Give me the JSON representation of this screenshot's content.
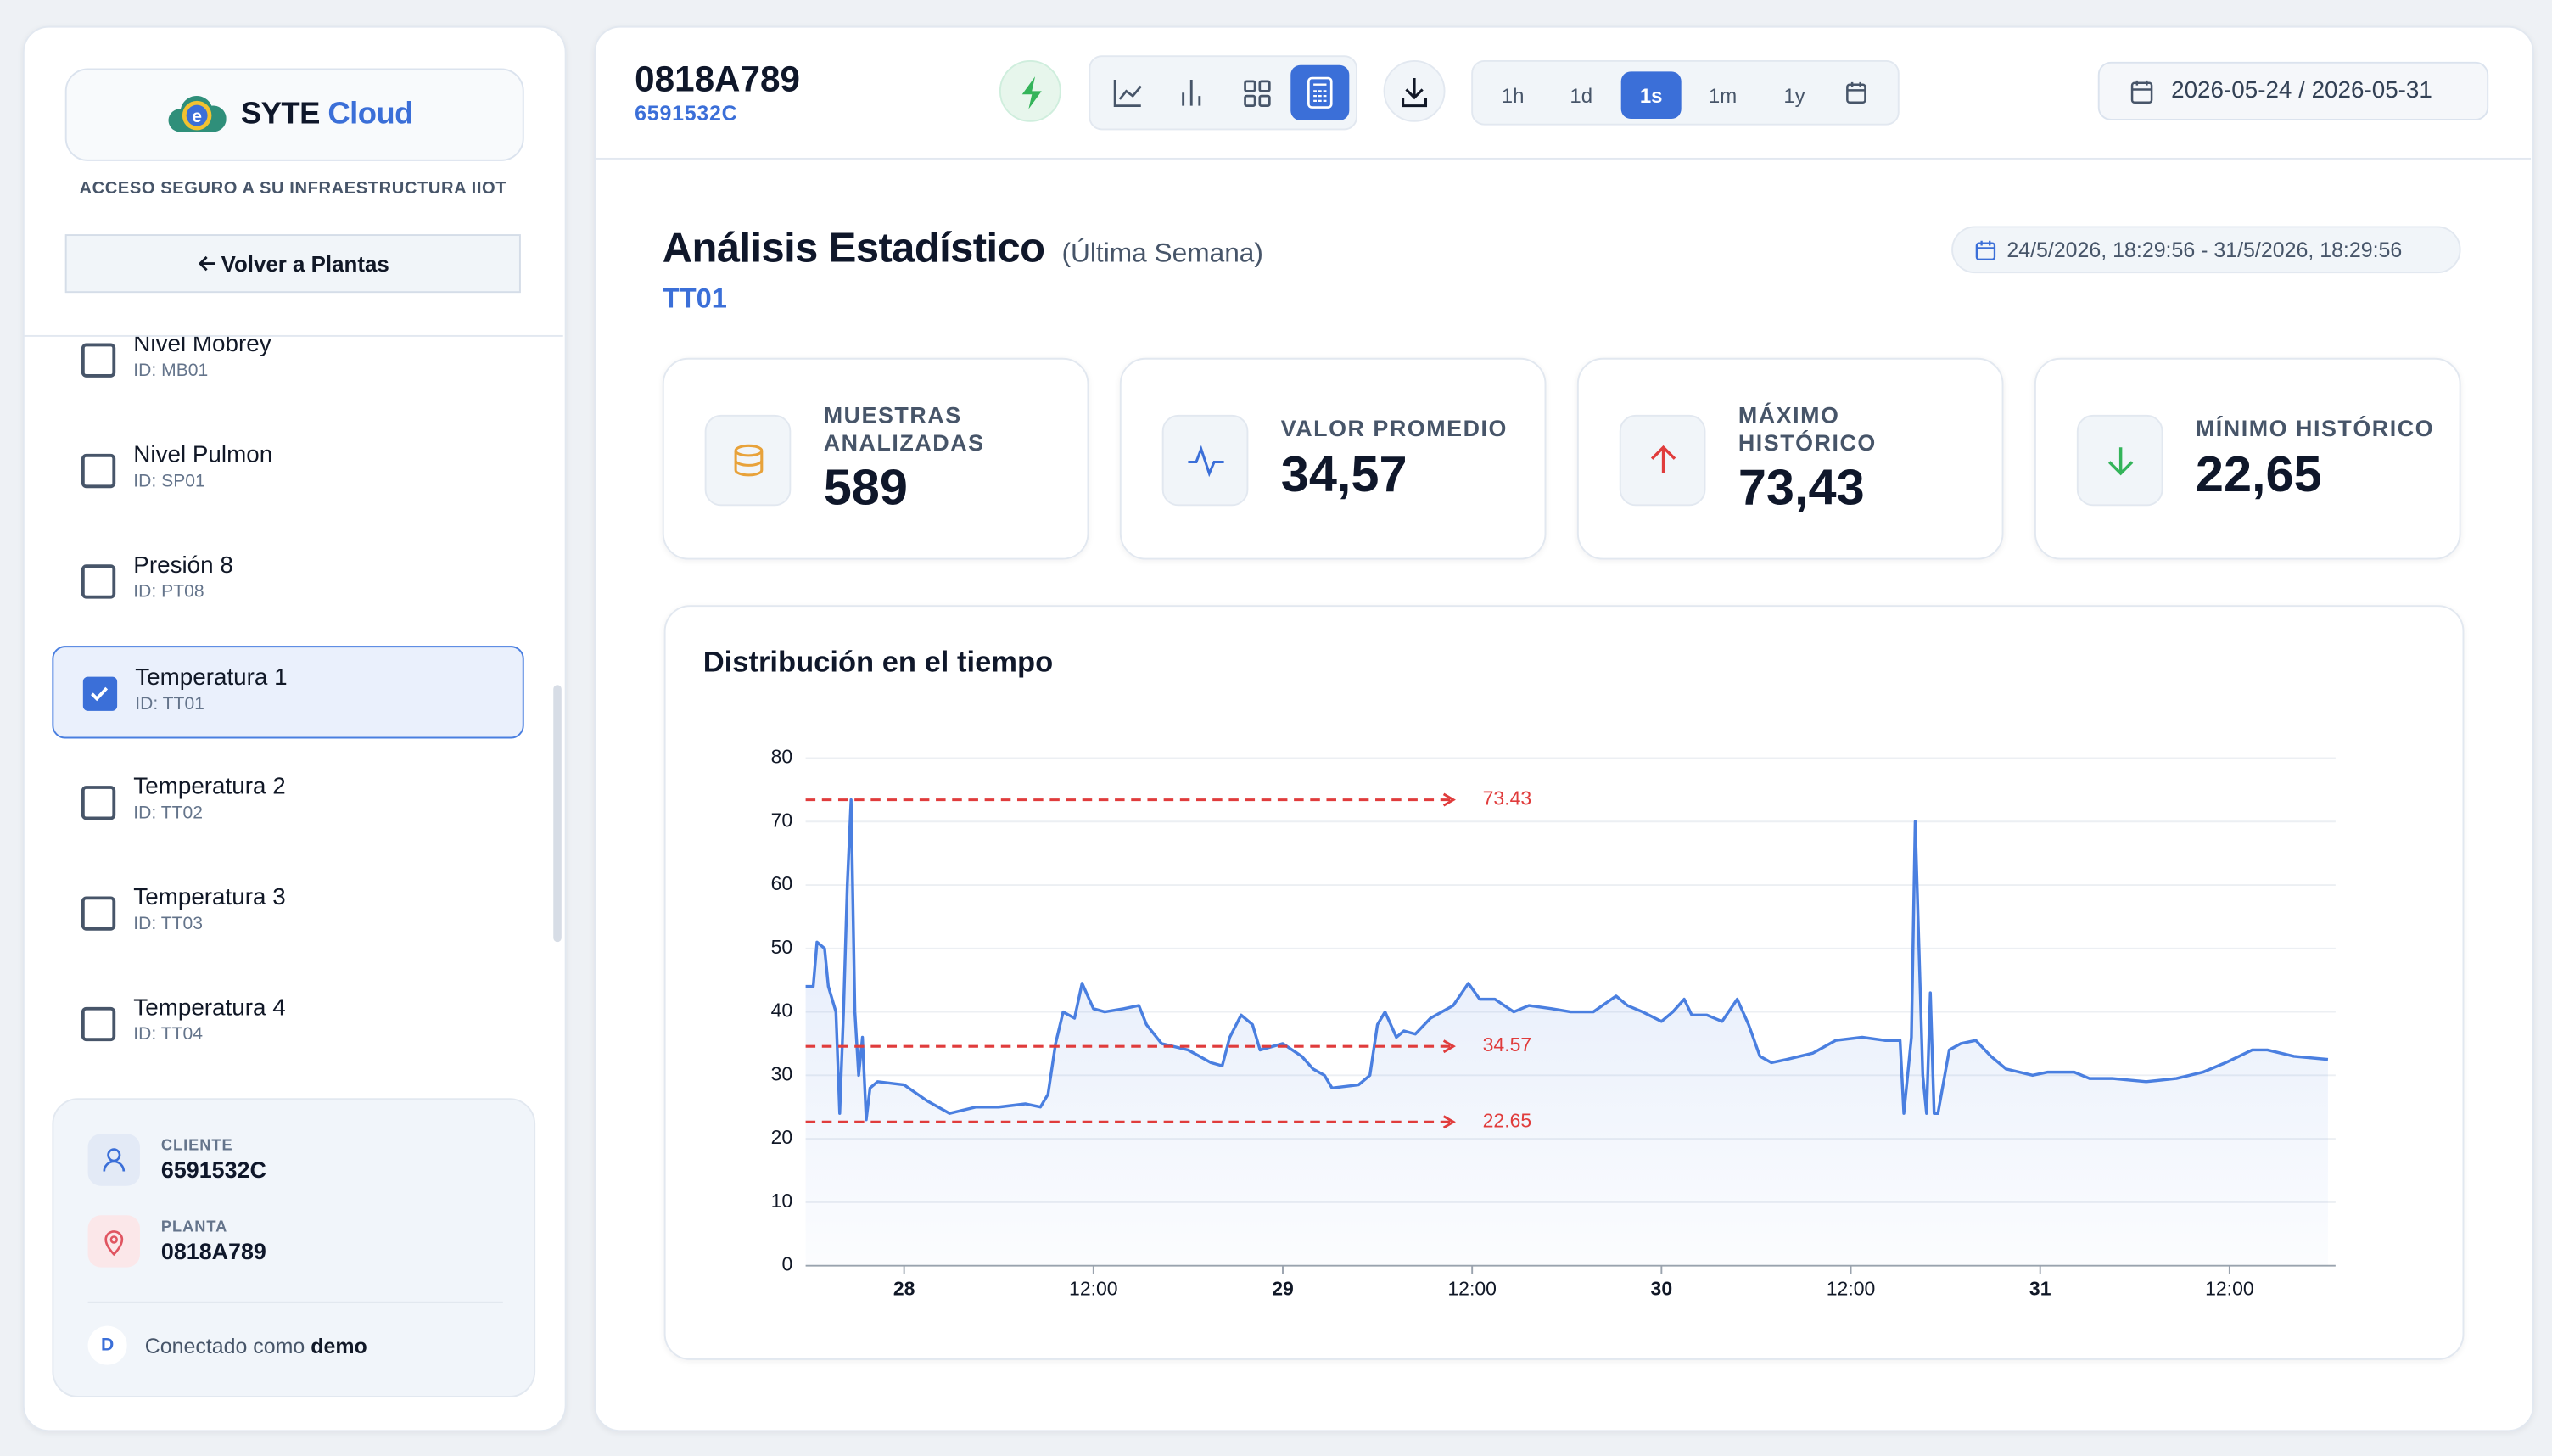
{
  "sidebar": {
    "brand": "SYTE",
    "brand_accent": "Cloud",
    "tagline": "ACCESO SEGURO A SU INFRAESTRUCTURA IIOT",
    "back_button": "Volver a Plantas",
    "sensors": [
      {
        "name": "Nivel Mobrey",
        "id": "ID: MB01"
      },
      {
        "name": "Nivel Pulmon",
        "id": "ID: SP01"
      },
      {
        "name": "Presión 8",
        "id": "ID: PT08"
      },
      {
        "name": "Temperatura 1",
        "id": "ID: TT01",
        "checked": true
      },
      {
        "name": "Temperatura 2",
        "id": "ID: TT02"
      },
      {
        "name": "Temperatura 3",
        "id": "ID: TT03"
      },
      {
        "name": "Temperatura 4",
        "id": "ID: TT04"
      }
    ],
    "client_label": "CLIENTE",
    "client": "6591532C",
    "plant_label": "PLANTA",
    "plant": "0818A789",
    "avatar": "D",
    "connected_text": "Conectado como",
    "connected_user": "demo"
  },
  "header": {
    "device": "0818A789",
    "client": "6591532C",
    "ranges": [
      "1h",
      "1d",
      "1s",
      "1m",
      "1y"
    ],
    "active_range": "1s",
    "date_range": "2026-05-24 / 2026-05-31"
  },
  "analysis": {
    "title": "Análisis Estadístico",
    "period": "(Última Semana)",
    "sensor": "TT01",
    "timestamp": "24/5/2026, 18:29:56 - 31/5/2026, 18:29:56",
    "stats": [
      {
        "label": "MUESTRAS ANALIZADAS",
        "value": "589"
      },
      {
        "label": "VALOR PROMEDIO",
        "value": "34,57"
      },
      {
        "label": "MÁXIMO HISTÓRICO",
        "value": "73,43"
      },
      {
        "label": "MÍNIMO HISTÓRICO",
        "value": "22,65"
      }
    ]
  },
  "chart_data": {
    "type": "line",
    "title": "Distribución en el tiempo",
    "x": [
      27.74,
      27.76,
      27.77,
      27.79,
      27.8,
      27.82,
      27.83,
      27.84,
      27.85,
      27.86,
      27.87,
      27.88,
      27.89,
      27.9,
      27.91,
      27.93,
      28.0,
      28.06,
      28.12,
      28.19,
      28.25,
      28.32,
      28.36,
      28.38,
      28.4,
      28.42,
      28.45,
      28.47,
      28.5,
      28.53,
      28.58,
      28.62,
      28.64,
      28.68,
      28.75,
      28.81,
      28.84,
      28.86,
      28.89,
      28.92,
      28.94,
      29.0,
      29.05,
      29.08,
      29.11,
      29.13,
      29.2,
      29.23,
      29.25,
      29.27,
      29.3,
      29.32,
      29.35,
      29.39,
      29.45,
      29.49,
      29.52,
      29.56,
      29.61,
      29.65,
      29.71,
      29.76,
      29.82,
      29.88,
      29.91,
      29.95,
      30.0,
      30.03,
      30.06,
      30.08,
      30.12,
      30.16,
      30.2,
      30.23,
      30.26,
      30.29,
      30.33,
      30.4,
      30.46,
      30.53,
      30.59,
      30.63,
      30.64,
      30.66,
      30.67,
      30.68,
      30.69,
      30.7,
      30.71,
      30.72,
      30.73,
      30.76,
      30.79,
      30.83,
      30.87,
      30.91,
      30.98,
      31.02,
      31.09,
      31.13,
      31.19,
      31.28,
      31.36,
      31.43,
      31.49,
      31.56,
      31.6,
      31.67,
      31.76
    ],
    "series": [
      {
        "color": "#4a7fe0",
        "values": [
          44,
          44,
          51,
          50,
          44,
          40,
          24,
          40,
          60,
          73.43,
          40,
          30,
          36,
          23,
          28,
          29,
          28.5,
          26,
          24,
          25,
          25,
          25.5,
          25,
          27,
          35,
          40,
          39,
          44.5,
          40.5,
          40,
          40.5,
          41,
          38,
          35,
          34,
          32,
          31.5,
          36,
          39.5,
          38,
          34,
          35,
          33,
          31,
          30,
          28,
          28.5,
          30,
          38,
          40,
          36,
          37,
          36.5,
          39,
          41,
          44.5,
          42,
          42,
          40,
          41,
          40.5,
          40,
          40,
          42.5,
          41,
          40,
          38.5,
          40,
          42,
          39.5,
          39.5,
          38.5,
          42,
          38,
          33,
          32,
          32.5,
          33.5,
          35.5,
          36,
          35.5,
          35.5,
          24,
          36,
          70,
          50,
          30,
          24,
          43,
          24,
          24,
          34,
          35,
          35.5,
          33,
          31,
          30,
          30.5,
          30.5,
          29.5,
          29.5,
          29,
          29.5,
          30.5,
          32,
          34,
          34,
          33,
          32.5
        ]
      }
    ],
    "fill": true,
    "xlim": [
      27.74,
      31.78
    ],
    "ylim": [
      0,
      80
    ],
    "yticks": [
      0,
      10,
      20,
      30,
      40,
      50,
      60,
      70,
      80
    ],
    "xticks": [
      28,
      {
        "value": 28.5,
        "label": "12:00"
      },
      29,
      {
        "value": 29.5,
        "label": "12:00"
      },
      30,
      {
        "value": 30.5,
        "label": "12:00"
      },
      31,
      {
        "value": 31.5,
        "label": "12:00"
      }
    ],
    "grid": true,
    "reference_lines": [
      73.43,
      34.57,
      22.65
    ],
    "reference_color": "#e03c3c"
  }
}
